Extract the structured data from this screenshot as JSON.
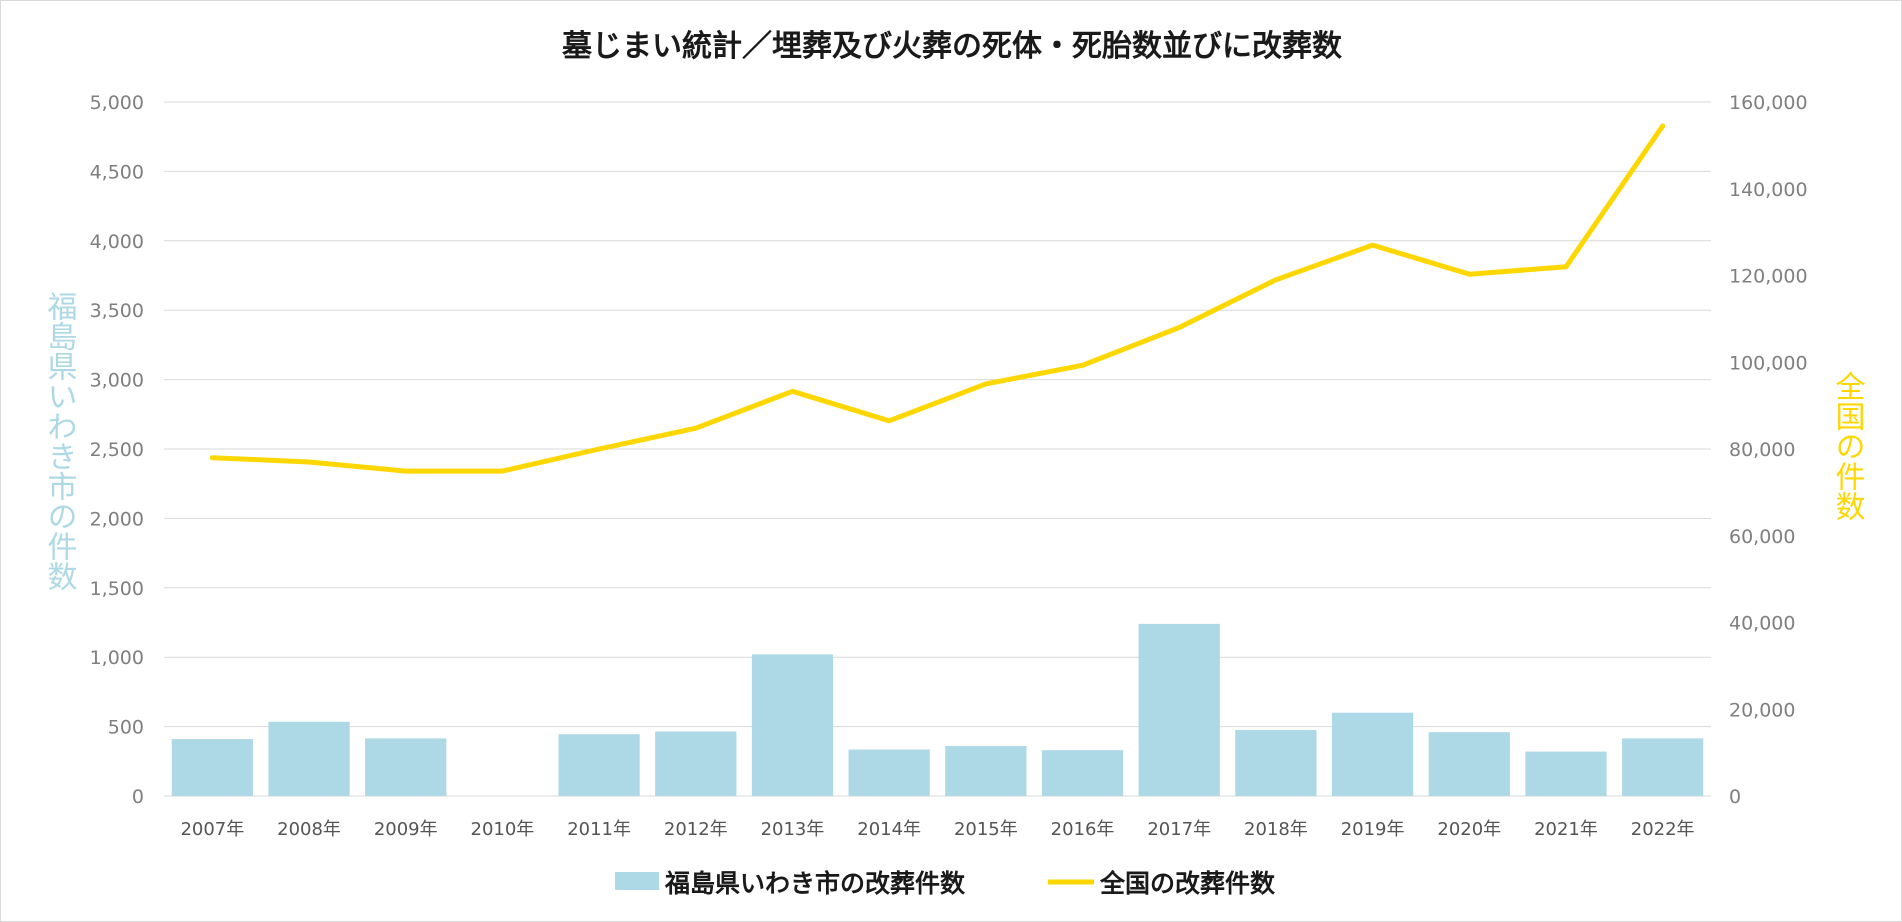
{
  "chart_data": {
    "type": "bar",
    "title": "墓じまい統計／埋葬及び火葬の死体・死胎数並びに改葬数",
    "categories": [
      "2007年",
      "2008年",
      "2009年",
      "2010年",
      "2011年",
      "2012年",
      "2013年",
      "2014年",
      "2015年",
      "2016年",
      "2017年",
      "2018年",
      "2019年",
      "2020年",
      "2021年",
      "2022年"
    ],
    "series": [
      {
        "name": "福島県いわき市の改葬件数",
        "type": "bar",
        "axis": "left",
        "color": "#add8e6",
        "values": [
          410,
          535,
          415,
          null,
          445,
          465,
          1020,
          335,
          360,
          330,
          1240,
          475,
          600,
          460,
          320,
          415
        ]
      },
      {
        "name": "全国の改葬件数",
        "type": "line",
        "axis": "right",
        "color": "#ffd700",
        "values": [
          78000,
          77000,
          74900,
          74900,
          80000,
          84800,
          93300,
          86500,
          95000,
          99300,
          108000,
          119000,
          127000,
          120300,
          122000,
          154500
        ]
      }
    ],
    "y_left": {
      "label": "福島県いわき市の件数",
      "label_color": "#add8e6",
      "lim": [
        0,
        5000
      ],
      "ticks": [
        "0",
        "500",
        "1,000",
        "1,500",
        "2,000",
        "2,500",
        "3,000",
        "3,500",
        "4,000",
        "4,500",
        "5,000"
      ]
    },
    "y_right": {
      "label": "全国の件数",
      "label_color": "#ffd700",
      "lim": [
        0,
        160000
      ],
      "ticks": [
        "0",
        "20,000",
        "40,000",
        "60,000",
        "80,000",
        "100,000",
        "120,000",
        "140,000",
        "160,000"
      ]
    },
    "grid": true,
    "legend_position": "bottom"
  }
}
